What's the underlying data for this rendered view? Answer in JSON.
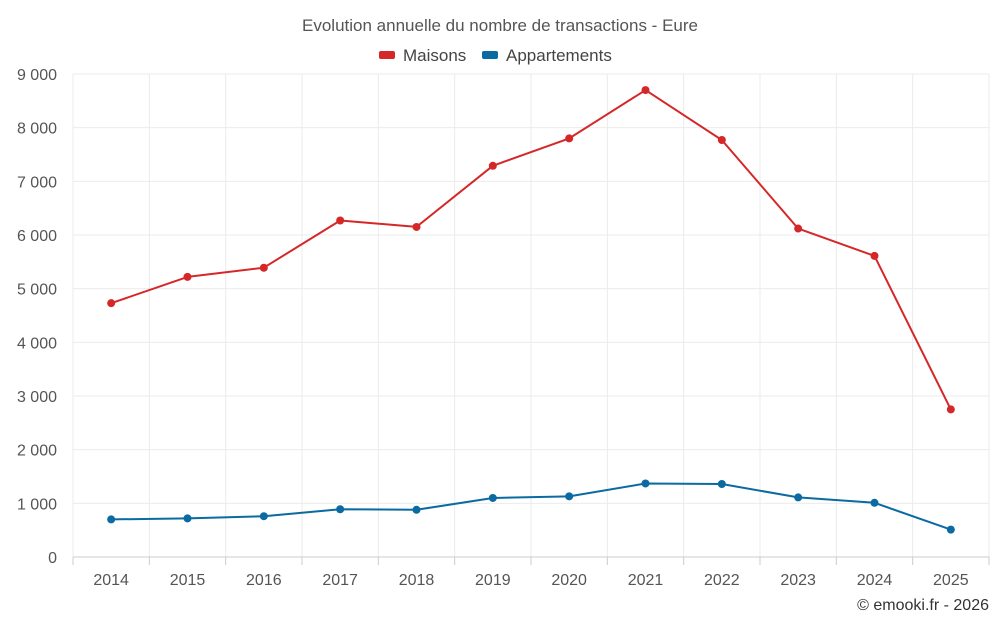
{
  "colors": {
    "maisons": "#d62728",
    "appartements": "#0a6aa1"
  },
  "chart_data": {
    "type": "line",
    "title": "Evolution annuelle du nombre de transactions - Eure",
    "categories": [
      "2014",
      "2015",
      "2016",
      "2017",
      "2018",
      "2019",
      "2020",
      "2021",
      "2022",
      "2023",
      "2024",
      "2025"
    ],
    "series": [
      {
        "name": "Maisons",
        "values": [
          4730,
          5220,
          5390,
          6270,
          6150,
          7290,
          7800,
          8700,
          7770,
          6120,
          5610,
          2750
        ]
      },
      {
        "name": "Appartements",
        "values": [
          700,
          720,
          760,
          890,
          880,
          1100,
          1130,
          1370,
          1360,
          1110,
          1010,
          510
        ]
      }
    ],
    "ylim": [
      0,
      9000
    ],
    "yticks": [
      0,
      1000,
      2000,
      3000,
      4000,
      5000,
      6000,
      7000,
      8000,
      9000
    ],
    "ytick_labels": [
      "0",
      "1 000",
      "2 000",
      "3 000",
      "4 000",
      "5 000",
      "6 000",
      "7 000",
      "8 000",
      "9 000"
    ],
    "legend_position": "top-center",
    "grid": true
  },
  "credit": "© emooki.fr - 2026"
}
